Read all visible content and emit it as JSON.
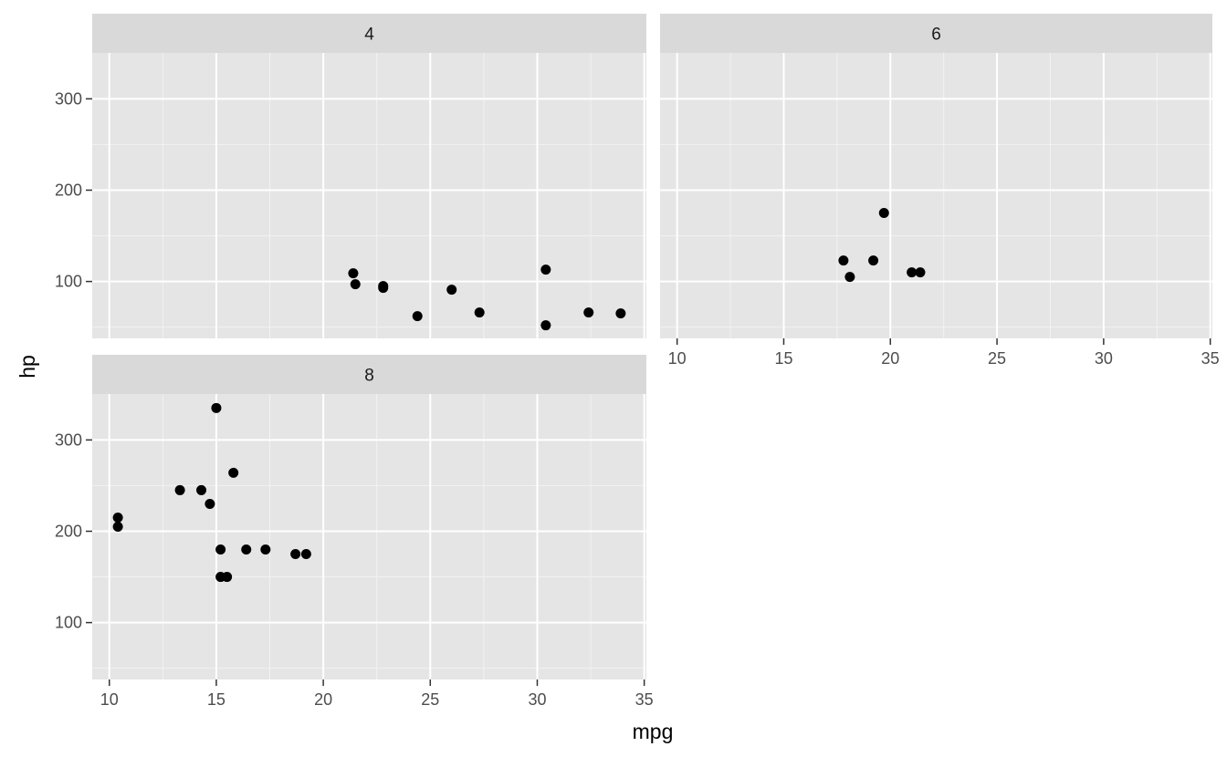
{
  "chart_data": {
    "type": "scatter",
    "xlabel": "mpg",
    "ylabel": "hp",
    "xlim": [
      9.2,
      35.1
    ],
    "ylim": [
      37.7,
      350.3
    ],
    "x_ticks": [
      10,
      15,
      20,
      25,
      30,
      35
    ],
    "y_ticks": [
      100,
      200,
      300
    ],
    "grid": true,
    "point_color": "#000000",
    "panel_background": "#e5e5e5",
    "strip_background": "#d9d9d9",
    "facets": [
      {
        "label": "4",
        "points": [
          {
            "x": 22.8,
            "y": 93
          },
          {
            "x": 24.4,
            "y": 62
          },
          {
            "x": 22.8,
            "y": 95
          },
          {
            "x": 32.4,
            "y": 66
          },
          {
            "x": 30.4,
            "y": 52
          },
          {
            "x": 33.9,
            "y": 65
          },
          {
            "x": 21.5,
            "y": 97
          },
          {
            "x": 27.3,
            "y": 66
          },
          {
            "x": 26.0,
            "y": 91
          },
          {
            "x": 30.4,
            "y": 113
          },
          {
            "x": 21.4,
            "y": 109
          }
        ]
      },
      {
        "label": "6",
        "points": [
          {
            "x": 21.0,
            "y": 110
          },
          {
            "x": 21.4,
            "y": 110
          },
          {
            "x": 18.1,
            "y": 105
          },
          {
            "x": 19.2,
            "y": 123
          },
          {
            "x": 17.8,
            "y": 123
          },
          {
            "x": 19.7,
            "y": 175
          }
        ]
      },
      {
        "label": "8",
        "points": [
          {
            "x": 18.7,
            "y": 175
          },
          {
            "x": 14.3,
            "y": 245
          },
          {
            "x": 16.4,
            "y": 180
          },
          {
            "x": 17.3,
            "y": 180
          },
          {
            "x": 15.2,
            "y": 180
          },
          {
            "x": 10.4,
            "y": 205
          },
          {
            "x": 10.4,
            "y": 215
          },
          {
            "x": 14.7,
            "y": 230
          },
          {
            "x": 15.5,
            "y": 150
          },
          {
            "x": 15.2,
            "y": 150
          },
          {
            "x": 13.3,
            "y": 245
          },
          {
            "x": 19.2,
            "y": 175
          },
          {
            "x": 15.8,
            "y": 264
          },
          {
            "x": 15.0,
            "y": 335
          }
        ]
      }
    ]
  }
}
